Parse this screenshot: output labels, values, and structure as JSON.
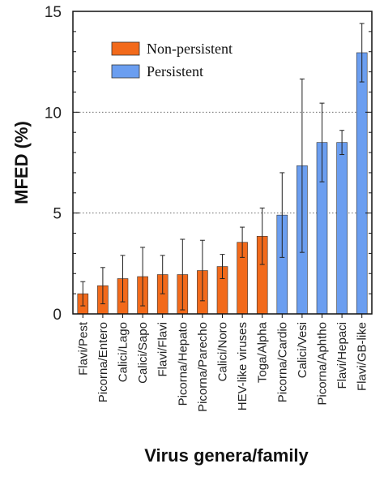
{
  "chart_data": {
    "type": "bar",
    "xlabel": "Virus genera/family",
    "ylabel": "MFED (%)",
    "ylim": [
      0,
      15
    ],
    "yticks": [
      0,
      5,
      10,
      15
    ],
    "gridlines": [
      5,
      10
    ],
    "legend_position": "top-left",
    "categories": [
      "Flavi/Pest",
      "Picorna/Entero",
      "Calici/Lago",
      "Calici/Sapo",
      "Flavi/Flavi",
      "Picorna/Hepato",
      "Picorna/Parecho",
      "Calici/Noro",
      "HEV-like viruses",
      "Toga/Alpha",
      "Picorna/Cardio",
      "Calici/Vesi",
      "Picorna/Aphtho",
      "Flavi/Hepaci",
      "Flavi/GB-like"
    ],
    "series": [
      {
        "name": "Non-persistent",
        "color": "#f26a1b",
        "values": [
          1.0,
          1.4,
          1.75,
          1.85,
          1.95,
          1.95,
          2.15,
          2.35,
          3.55,
          3.85,
          null,
          null,
          null,
          null,
          null
        ],
        "error": [
          0.6,
          0.9,
          1.15,
          1.45,
          0.95,
          1.75,
          1.5,
          0.6,
          0.75,
          1.4,
          null,
          null,
          null,
          null,
          null
        ]
      },
      {
        "name": "Persistent",
        "color": "#6b9ef0",
        "values": [
          null,
          null,
          null,
          null,
          null,
          null,
          null,
          null,
          null,
          null,
          4.9,
          7.35,
          8.5,
          8.5,
          12.95
        ],
        "error": [
          null,
          null,
          null,
          null,
          null,
          null,
          null,
          null,
          null,
          null,
          2.1,
          4.3,
          1.95,
          0.6,
          1.45
        ]
      }
    ]
  }
}
